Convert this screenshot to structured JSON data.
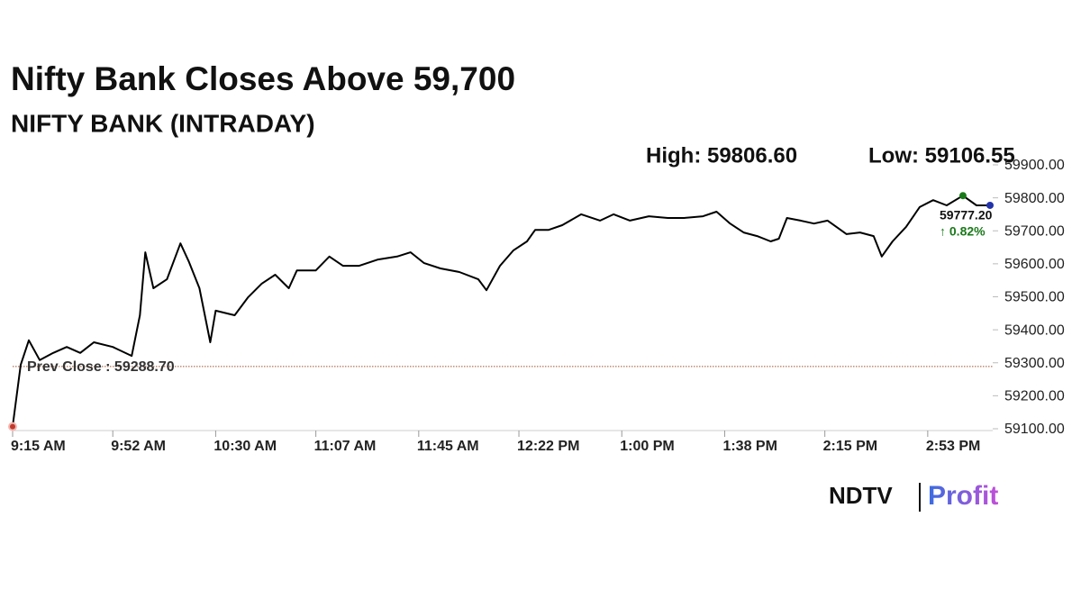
{
  "chart_data": {
    "type": "line",
    "title": "Nifty Bank Closes Above 59,700",
    "subtitle": "NIFTY BANK (INTRADAY)",
    "high": {
      "value": 59806.6,
      "label": "High: 59806.60"
    },
    "low": {
      "value": 59106.55,
      "label": "Low: 59106.55"
    },
    "prev_close": {
      "value": 59288.7,
      "label": "Prev Close : 59288.70"
    },
    "last": {
      "value": 59777.2,
      "label": "59777.20",
      "change": "↑ 0.82%"
    },
    "brand": [
      "NDTV",
      "Profit"
    ],
    "color": "#000000",
    "x": [
      "9:15 AM",
      "9:18 AM",
      "9:21 AM",
      "9:25 AM",
      "9:30 AM",
      "9:35 AM",
      "9:40 AM",
      "9:45 AM",
      "9:52 AM",
      "9:59 AM",
      "10:02 AM",
      "10:04 AM",
      "10:07 AM",
      "10:12 AM",
      "10:17 AM",
      "10:20 AM",
      "10:24 AM",
      "10:28 AM",
      "10:30 AM",
      "10:37 AM",
      "10:42 AM",
      "10:47 AM",
      "10:52 AM",
      "10:57 AM",
      "11:00 AM",
      "11:07 AM",
      "11:12 AM",
      "11:17 AM",
      "11:23 AM",
      "11:30 AM",
      "11:37 AM",
      "11:42 AM",
      "11:47 AM",
      "11:53 AM",
      "12:00 PM",
      "12:07 PM",
      "12:10 PM",
      "12:15 PM",
      "12:20 PM",
      "12:25 PM",
      "12:28 PM",
      "12:33 PM",
      "12:38 PM",
      "12:45 PM",
      "12:52 PM",
      "12:57 PM",
      "1:03 PM",
      "1:10 PM",
      "1:17 PM",
      "1:23 PM",
      "1:30 PM",
      "1:35 PM",
      "1:40 PM",
      "1:45 PM",
      "1:50 PM",
      "1:55 PM",
      "1:58 PM",
      "2:01 PM",
      "2:06 PM",
      "2:11 PM",
      "2:16 PM",
      "2:23 PM",
      "2:28 PM",
      "2:33 PM",
      "2:36 PM",
      "2:40 PM",
      "2:45 PM",
      "2:50 PM",
      "2:55 PM",
      "3:00 PM",
      "3:06 PM",
      "3:11 PM",
      "3:16 PM"
    ],
    "values": [
      59106.55,
      59294,
      59368,
      59308,
      59330,
      59348,
      59330,
      59362,
      59348,
      59321,
      59444,
      59635,
      59526,
      59553,
      59662,
      59608,
      59526,
      59362,
      59458,
      59444,
      59499,
      59540,
      59567,
      59526,
      59580,
      59580,
      59622,
      59594,
      59594,
      59613,
      59622,
      59635,
      59602,
      59586,
      59575,
      59553,
      59520,
      59594,
      59641,
      59668,
      59703,
      59703,
      59717,
      59750,
      59731,
      59750,
      59731,
      59744,
      59739,
      59739,
      59744,
      59758,
      59722,
      59695,
      59684,
      59668,
      59676,
      59739,
      59731,
      59722,
      59731,
      59690,
      59695,
      59684,
      59622,
      59668,
      59712,
      59772,
      59793,
      59777,
      59806.6,
      59777,
      59777.2
    ],
    "xlim": [
      "9:15 AM",
      "3:17 PM"
    ],
    "xticks": [
      "9:15 AM",
      "9:52 AM",
      "10:30 AM",
      "11:07 AM",
      "11:45 AM",
      "12:22 PM",
      "1:00 PM",
      "1:38 PM",
      "2:15 PM",
      "2:53 PM"
    ],
    "ylim": [
      59100,
      59900
    ],
    "yticks": [
      {
        "value": 59100,
        "label": "59100.00"
      },
      {
        "value": 59200,
        "label": "59200.00"
      },
      {
        "value": 59300,
        "label": "59300.00"
      },
      {
        "value": 59400,
        "label": "59400.00"
      },
      {
        "value": 59500,
        "label": "59500.00"
      },
      {
        "value": 59600,
        "label": "59600.00"
      },
      {
        "value": 59700,
        "label": "59700.00"
      },
      {
        "value": 59800,
        "label": "59800.00"
      },
      {
        "value": 59900,
        "label": "59900.00"
      }
    ]
  }
}
